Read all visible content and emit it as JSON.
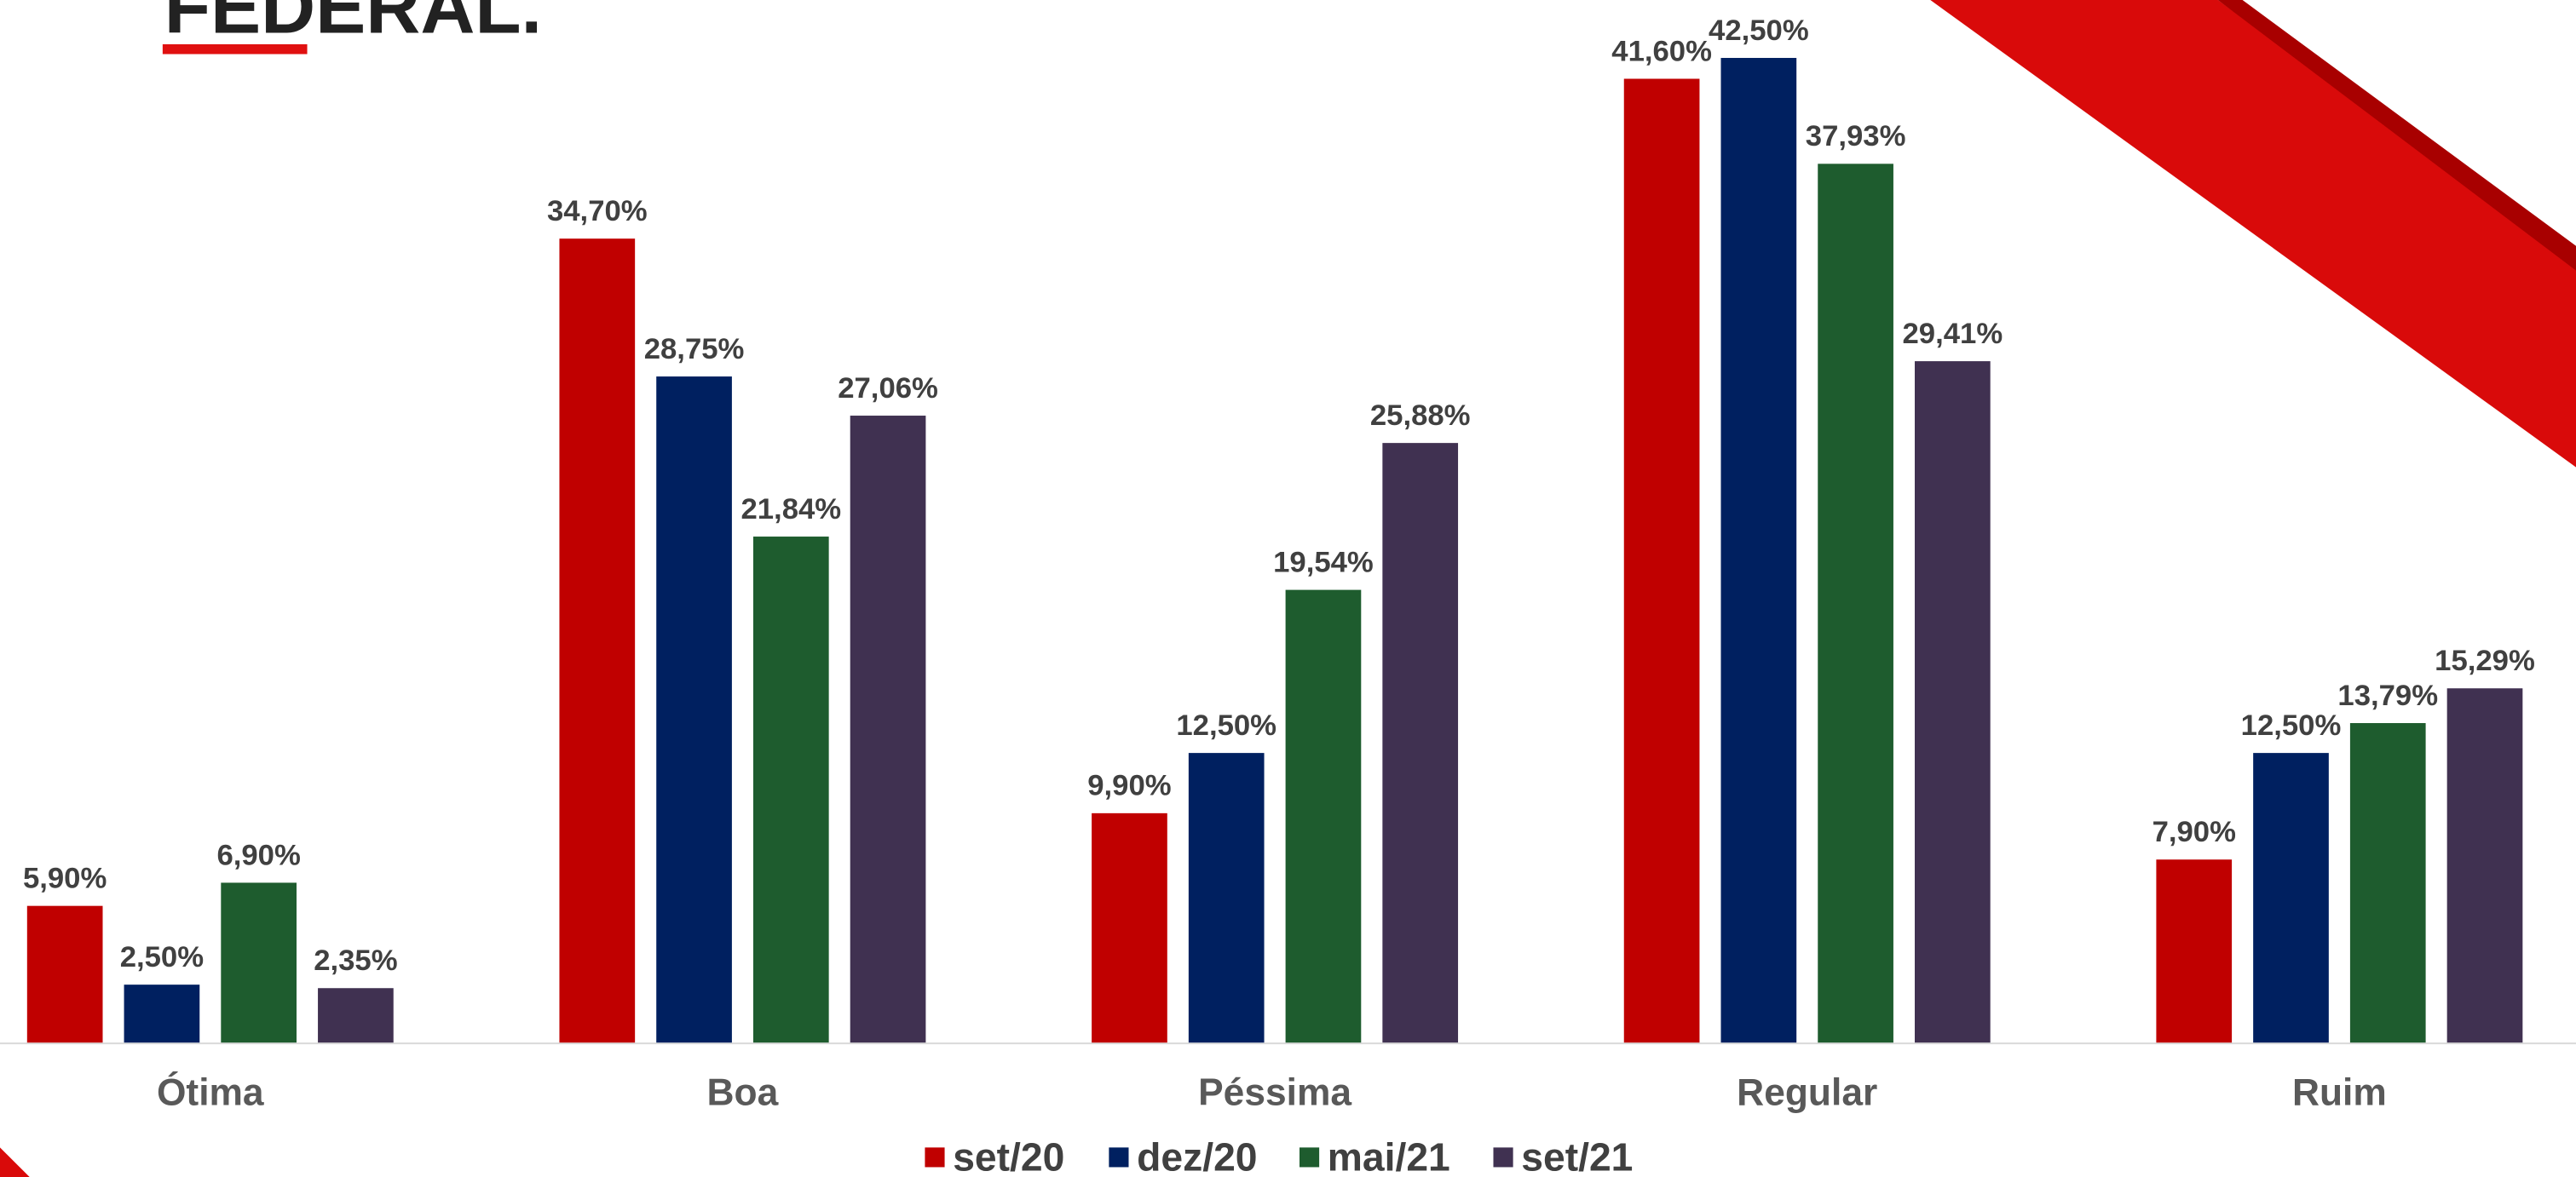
{
  "chart_data": {
    "type": "bar",
    "title": "FEDERAL.",
    "categories": [
      "Ótima",
      "Boa",
      "Péssima",
      "Regular",
      "Ruim"
    ],
    "series": [
      {
        "name": "set/20",
        "color": "#c00000",
        "values": [
          5.9,
          34.7,
          9.9,
          41.6,
          7.9
        ],
        "value_labels": [
          "5,90%",
          "34,70%",
          "9,90%",
          "41,60%",
          "7,90%"
        ]
      },
      {
        "name": "dez/20",
        "color": "#002060",
        "values": [
          2.5,
          28.75,
          12.5,
          42.5,
          12.5
        ],
        "value_labels": [
          "2,50%",
          "28,75%",
          "12,50%",
          "42,50%",
          "12,50%"
        ]
      },
      {
        "name": "mai/21",
        "color": "#1e5c2e",
        "values": [
          6.9,
          21.84,
          19.54,
          37.93,
          13.79
        ],
        "value_labels": [
          "6,90%",
          "21,84%",
          "19,54%",
          "37,93%",
          "13,79%"
        ]
      },
      {
        "name": "set/21",
        "color": "#403151",
        "values": [
          2.35,
          27.06,
          25.88,
          29.41,
          15.29
        ],
        "value_labels": [
          "2,35%",
          "27,06%",
          "25,88%",
          "29,41%",
          "15,29%"
        ]
      }
    ],
    "ylim": [
      0,
      45
    ],
    "legend": "bottom"
  }
}
